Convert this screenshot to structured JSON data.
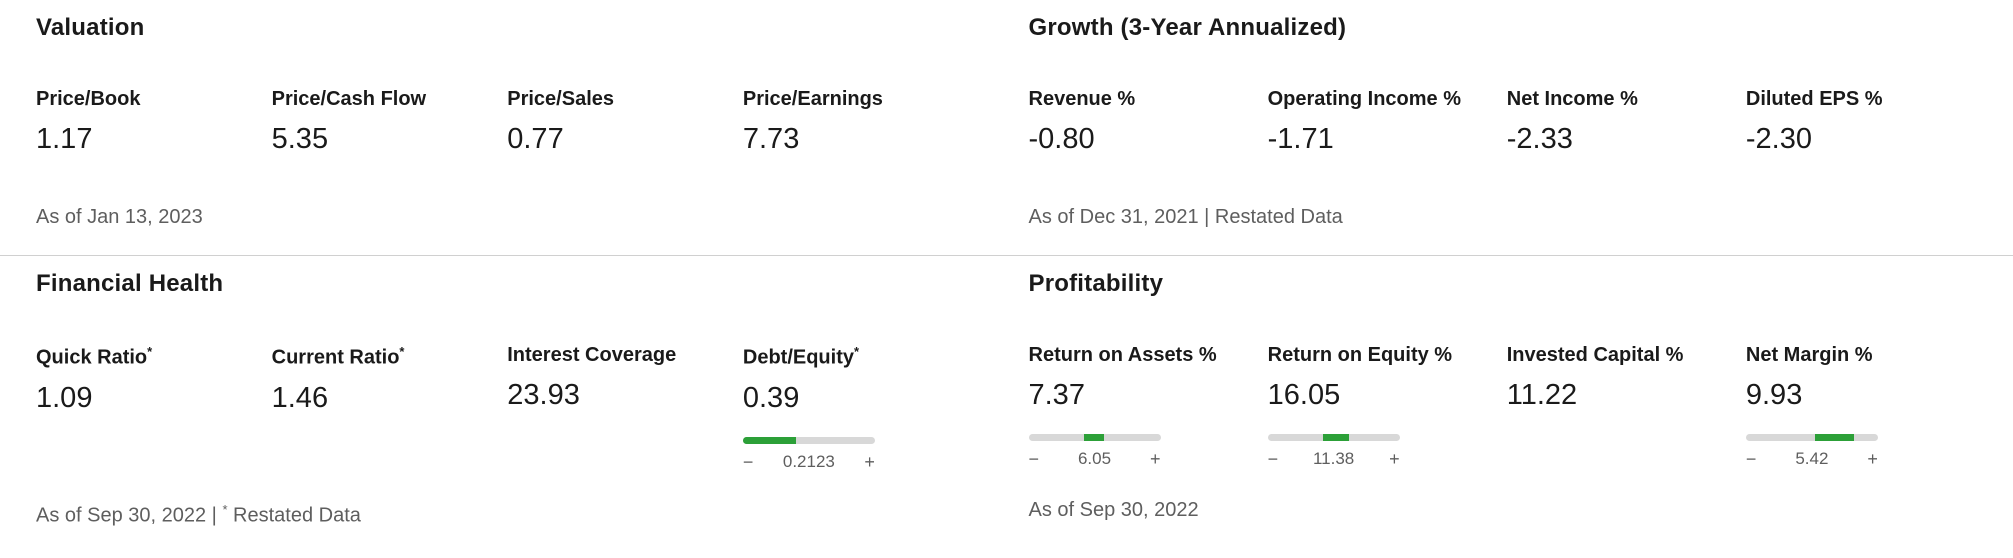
{
  "colors": {
    "green": "#2ca038",
    "track": "#d8d8d8",
    "muted": "#5e5e5e",
    "divider": "#d0d0d0"
  },
  "gauge_controls": {
    "minus": "−",
    "plus": "+"
  },
  "valuation": {
    "title": "Valuation",
    "as_of": "As of Jan 13, 2023",
    "metrics": [
      {
        "label": "Price/Book",
        "value": "1.17"
      },
      {
        "label": "Price/Cash Flow",
        "value": "5.35"
      },
      {
        "label": "Price/Sales",
        "value": "0.77"
      },
      {
        "label": "Price/Earnings",
        "value": "7.73"
      }
    ]
  },
  "growth": {
    "title": "Growth (3-Year Annualized)",
    "as_of": "As of Dec 31, 2021 | Restated Data",
    "metrics": [
      {
        "label": "Revenue %",
        "value": "-0.80"
      },
      {
        "label": "Operating Income %",
        "value": "-1.71"
      },
      {
        "label": "Net Income %",
        "value": "-2.33"
      },
      {
        "label": "Diluted EPS %",
        "value": "-2.30"
      }
    ]
  },
  "financial_health": {
    "title": "Financial Health",
    "as_of_prefix": "As of Sep 30, 2022 | ",
    "as_of_sup": "*",
    "as_of_suffix": " Restated Data",
    "metrics": [
      {
        "label": "Quick Ratio",
        "sup": "*",
        "value": "1.09"
      },
      {
        "label": "Current Ratio",
        "sup": "*",
        "value": "1.46"
      },
      {
        "label": "Interest Coverage",
        "value": "23.93"
      },
      {
        "label": "Debt/Equity",
        "sup": "*",
        "value": "0.39",
        "slider": {
          "benchmark": "0.2123",
          "fill_left_pct": 0,
          "fill_width_pct": 40
        }
      }
    ]
  },
  "profitability": {
    "title": "Profitability",
    "as_of": "As of Sep 30, 2022",
    "metrics": [
      {
        "label": "Return on Assets %",
        "value": "7.37",
        "slider": {
          "benchmark": "6.05",
          "fill_left_pct": 42,
          "fill_width_pct": 15
        }
      },
      {
        "label": "Return on Equity %",
        "value": "16.05",
        "slider": {
          "benchmark": "11.38",
          "fill_left_pct": 42,
          "fill_width_pct": 20
        }
      },
      {
        "label": "Invested Capital %",
        "value": "11.22"
      },
      {
        "label": "Net Margin %",
        "value": "9.93",
        "slider": {
          "benchmark": "5.42",
          "fill_left_pct": 52,
          "fill_width_pct": 30
        }
      }
    ]
  }
}
